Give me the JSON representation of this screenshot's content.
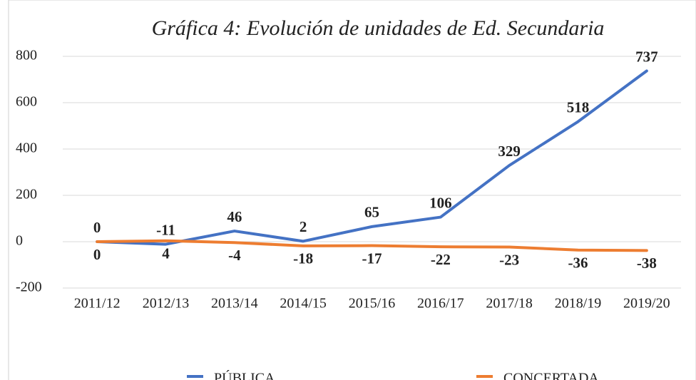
{
  "chart_data": {
    "type": "line",
    "title": "Gráfica 4: Evolución de unidades de Ed. Secundaria",
    "categories": [
      "2011/12",
      "2012/13",
      "2013/14",
      "2014/15",
      "2015/16",
      "2016/17",
      "2017/18",
      "2018/19",
      "2019/20"
    ],
    "series": [
      {
        "name": "PÚBLICA",
        "color": "#4472c4",
        "values": [
          0,
          -11,
          46,
          2,
          65,
          106,
          329,
          518,
          737
        ]
      },
      {
        "name": "CONCERTADA",
        "color": "#ed7d31",
        "values": [
          0,
          4,
          -4,
          -18,
          -17,
          -22,
          -23,
          -36,
          -38
        ]
      }
    ],
    "ylim": [
      -200,
      800
    ],
    "yticks": [
      -200,
      0,
      200,
      400,
      600,
      800
    ],
    "grid": true
  }
}
